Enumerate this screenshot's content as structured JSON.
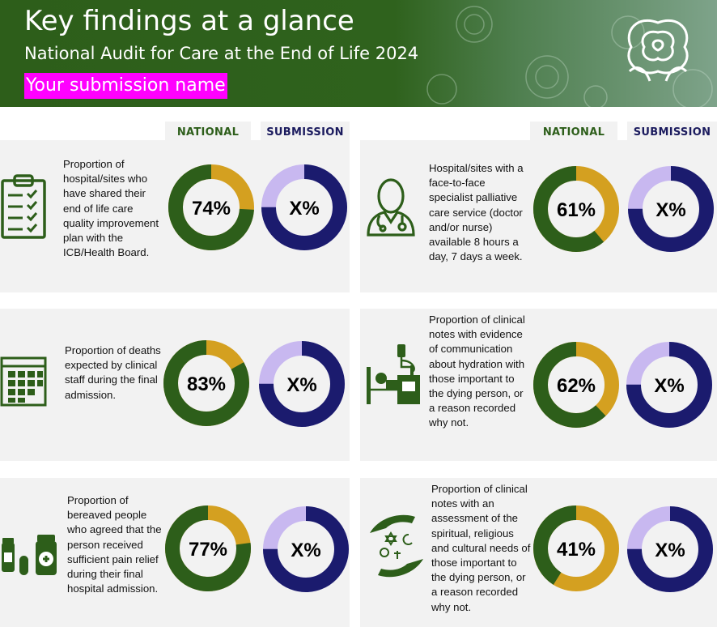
{
  "header": {
    "title": "Key findings at a glance",
    "subtitle": "National Audit for Care at the End of Life 2024",
    "submission_name": "Your submission name"
  },
  "columns": {
    "national": "NATIONAL",
    "submission": "SUBMISSION"
  },
  "colors": {
    "green": "#2d5e1a",
    "gold": "#d4a020",
    "navy": "#1b1b6e",
    "lilac": "#c8b8f0",
    "card_bg": "#f2f2f2"
  },
  "findings": [
    {
      "icon": "clipboard-checklist-icon",
      "description": "Proportion of hospital/sites who have shared their end of life care quality improvement plan with the ICB/Health Board.",
      "national_value": 74,
      "national_label": "74%",
      "submission_label": "X%"
    },
    {
      "icon": "doctor-icon",
      "description": "Hospital/sites with a face-to-face specialist palliative care service (doctor and/or nurse) available 8 hours a day, 7 days a week.",
      "national_value": 61,
      "national_label": "61%",
      "submission_label": "X%"
    },
    {
      "icon": "calendar-icon",
      "description": "Proportion of deaths expected by clinical staff during the final admission.",
      "national_value": 83,
      "national_label": "83%",
      "submission_label": "X%"
    },
    {
      "icon": "hospital-bed-drip-icon",
      "description": "Proportion of clinical notes with evidence of communication about hydration with those important to the dying person, or a reason recorded why not.",
      "national_value": 62,
      "national_label": "62%",
      "submission_label": "X%"
    },
    {
      "icon": "medication-icon",
      "description": "Proportion of bereaved people who agreed that the person received sufficient pain relief during their final hospital admission.",
      "national_value": 77,
      "national_label": "77%",
      "submission_label": "X%"
    },
    {
      "icon": "faith-hands-icon",
      "description": "Proportion of clinical notes with an assessment of the spiritual, religious and cultural needs of those important to the dying person, or a reason recorded why not.",
      "national_value": 41,
      "national_label": "41%",
      "submission_label": "X%"
    }
  ]
}
